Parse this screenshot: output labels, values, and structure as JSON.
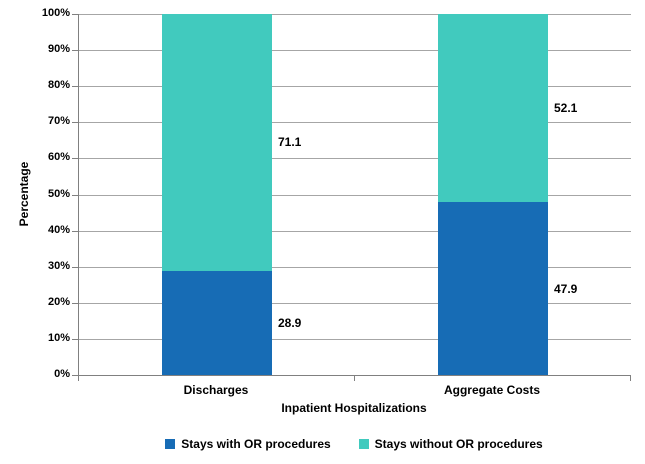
{
  "chart_data": {
    "type": "bar",
    "stacked": true,
    "title": "",
    "categories": [
      "Discharges",
      "Aggregate Costs"
    ],
    "series": [
      {
        "name": "Stays with OR procedures",
        "color": "#176CB5",
        "values": [
          28.9,
          47.9
        ]
      },
      {
        "name": "Stays without OR procedures",
        "color": "#41CABE",
        "values": [
          71.1,
          52.1
        ]
      }
    ],
    "value_labels": [
      "28.9",
      "47.9",
      "71.1",
      "52.1"
    ],
    "xlabel": "Inpatient Hospitalizations",
    "ylabel": "Percentage",
    "ylim": [
      0,
      100
    ],
    "ytick_step": 10,
    "ytick_suffix": "%",
    "ytick_labels": [
      "0%",
      "10%",
      "20%",
      "30%",
      "40%",
      "50%",
      "60%",
      "70%",
      "80%",
      "90%",
      "100%"
    ],
    "grid": "horizontal",
    "legend_position": "bottom"
  },
  "colors": {
    "background": "#FFFFFF",
    "gridline": "#A6A6A6",
    "axis": "#808080",
    "text": "#000000",
    "series_blue": "#176CB5",
    "series_teal": "#41CABE"
  }
}
